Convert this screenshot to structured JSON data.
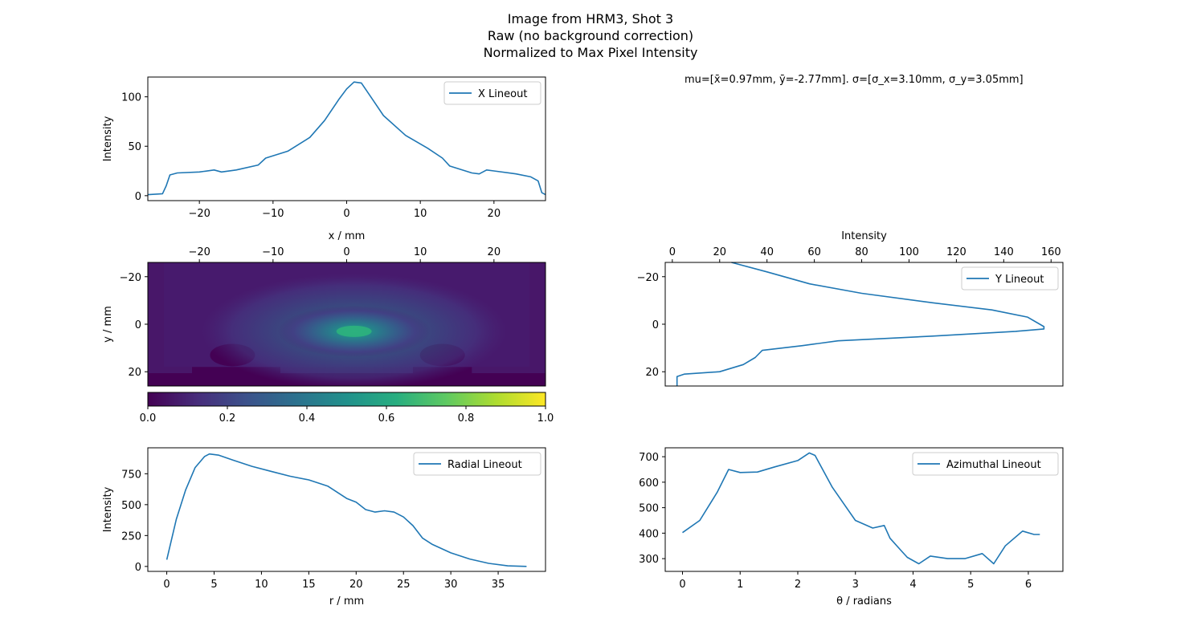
{
  "figure": {
    "title_lines": [
      "Image from HRM3, Shot 3",
      "Raw (no background correction)",
      "Normalized to Max Pixel Intensity"
    ],
    "stats_text": "mu=[x̄=0.97mm, ȳ=-2.77mm]. σ=[σ_x=3.10mm, σ_y=3.05mm]"
  },
  "colors": {
    "line": "#1f77b4"
  },
  "chart_data": [
    {
      "id": "x-lineout",
      "type": "line",
      "xlabel": "",
      "ylabel": "Intensity",
      "xlim": [
        -27,
        27
      ],
      "ylim": [
        -5,
        120
      ],
      "xticks": [
        -20,
        -10,
        0,
        10,
        20
      ],
      "yticks": [
        0,
        50,
        100
      ],
      "legend": "top-right",
      "series": [
        {
          "name": "X Lineout",
          "x": [
            -27,
            -25,
            -24.5,
            -24,
            -23,
            -20,
            -18,
            -17,
            -15,
            -12,
            -11,
            -8,
            -5,
            -3,
            -1,
            0,
            1,
            2,
            3,
            5,
            8,
            11,
            13,
            14,
            17,
            18,
            19,
            20,
            23,
            25,
            26,
            26.5,
            27
          ],
          "y": [
            1,
            2,
            10,
            21,
            23,
            24,
            26,
            24,
            26,
            31,
            38,
            45,
            59,
            76,
            98,
            108,
            115,
            114,
            103,
            81,
            61,
            48,
            38,
            30,
            23,
            22,
            26,
            25,
            22,
            19,
            15,
            3,
            1
          ]
        }
      ]
    },
    {
      "id": "image",
      "type": "heatmap",
      "xlabel": "x / mm",
      "ylabel": "y / mm",
      "xlim": [
        -27,
        27
      ],
      "ylim": [
        -26,
        26
      ],
      "xticks": [
        -20,
        -10,
        0,
        10,
        20
      ],
      "yticks": [
        -20,
        0,
        20
      ],
      "peak": {
        "x": 1.0,
        "y": 3.0,
        "value": 0.65
      },
      "colorbar": {
        "cmap": "viridis",
        "range": [
          0,
          1
        ],
        "ticks": [
          0.0,
          0.2,
          0.4,
          0.6,
          0.8,
          1.0
        ]
      }
    },
    {
      "id": "y-lineout",
      "type": "line",
      "xlabel": "Intensity",
      "ylabel": "",
      "xlim": [
        -3,
        165
      ],
      "ylim": [
        -26,
        26
      ],
      "xticks": [
        0,
        20,
        40,
        60,
        80,
        100,
        120,
        140,
        160
      ],
      "yticks": [
        -20,
        0,
        20
      ],
      "legend": "top-right",
      "series": [
        {
          "name": "Y Lineout",
          "intensity": [
            25,
            40,
            58,
            80,
            110,
            135,
            150,
            157,
            157,
            145,
            110,
            70,
            55,
            38,
            35,
            30,
            20,
            5,
            2,
            2
          ],
          "y": [
            -26,
            -22,
            -17,
            -13,
            -9,
            -6,
            -3,
            1,
            2,
            3,
            5,
            7,
            9,
            11,
            14,
            17,
            20,
            21,
            22,
            26
          ]
        }
      ]
    },
    {
      "id": "radial-lineout",
      "type": "line",
      "xlabel": "r / mm",
      "ylabel": "Intensity",
      "xlim": [
        -2,
        40
      ],
      "ylim": [
        -40,
        960
      ],
      "xticks": [
        0,
        5,
        10,
        15,
        20,
        25,
        30,
        35
      ],
      "yticks": [
        0,
        250,
        500,
        750
      ],
      "legend": "top-right",
      "series": [
        {
          "name": "Radial Lineout",
          "x": [
            0,
            1,
            2,
            3,
            4,
            4.5,
            5.5,
            7,
            9,
            11,
            13,
            15,
            17,
            19,
            20,
            21,
            22,
            23,
            24,
            25,
            26,
            27,
            28,
            30,
            32,
            34,
            36,
            38
          ],
          "y": [
            55,
            380,
            620,
            800,
            890,
            910,
            900,
            860,
            810,
            770,
            730,
            700,
            650,
            550,
            520,
            460,
            440,
            450,
            440,
            400,
            330,
            230,
            180,
            110,
            60,
            25,
            5,
            0
          ]
        }
      ]
    },
    {
      "id": "azimuthal-lineout",
      "type": "line",
      "xlabel": "θ / radians",
      "ylabel": "",
      "xlim": [
        -0.3,
        6.6
      ],
      "ylim": [
        250,
        735
      ],
      "xticks": [
        0,
        1,
        2,
        3,
        4,
        5,
        6
      ],
      "yticks": [
        300,
        400,
        500,
        600,
        700
      ],
      "legend": "top-right",
      "series": [
        {
          "name": "Azimuthal Lineout",
          "x": [
            0,
            0.3,
            0.6,
            0.8,
            1.0,
            1.3,
            1.6,
            2.0,
            2.2,
            2.3,
            2.6,
            3.0,
            3.3,
            3.5,
            3.6,
            3.8,
            3.9,
            4.1,
            4.3,
            4.6,
            4.9,
            5.2,
            5.4,
            5.6,
            5.9,
            6.1,
            6.2
          ],
          "y": [
            402,
            450,
            560,
            650,
            638,
            640,
            660,
            685,
            715,
            705,
            580,
            450,
            420,
            430,
            380,
            330,
            305,
            280,
            310,
            300,
            300,
            320,
            280,
            350,
            408,
            395,
            395
          ]
        }
      ]
    }
  ]
}
